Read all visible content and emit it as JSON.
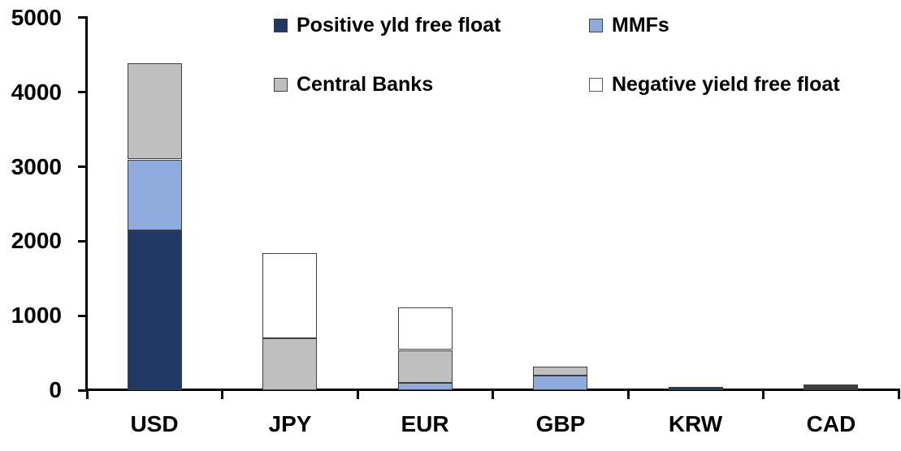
{
  "chart_data": {
    "type": "bar",
    "stacked": true,
    "title": "",
    "xlabel": "",
    "ylabel": "",
    "categories": [
      "USD",
      "JPY",
      "EUR",
      "GBP",
      "KRW",
      "CAD"
    ],
    "series": [
      {
        "name": "Positive yld free float",
        "color": "#1F3864",
        "swatch_border": "#404040",
        "values": [
          2150,
          0,
          0,
          0,
          45,
          35
        ]
      },
      {
        "name": "MMFs",
        "color": "#8FAADC",
        "swatch_border": "#404040",
        "values": [
          950,
          0,
          100,
          200,
          0,
          15
        ]
      },
      {
        "name": "Central Banks",
        "color": "#BFBFBF",
        "swatch_border": "#404040",
        "values": [
          1290,
          700,
          440,
          120,
          0,
          25
        ]
      },
      {
        "name": "Negative yield free float",
        "color": "#FFFFFF",
        "swatch_border": "#595959",
        "values": [
          0,
          1140,
          570,
          0,
          0,
          0
        ]
      }
    ],
    "totals_approx": [
      4390,
      1840,
      1110,
      320,
      45,
      75
    ],
    "ylim": [
      0,
      5000
    ],
    "yticks": [
      0,
      1000,
      2000,
      3000,
      4000,
      5000
    ],
    "ytick_labels": [
      "0",
      "1000",
      "2000",
      "3000",
      "4000",
      "5000"
    ],
    "legend_position": "top",
    "legend_layout": "two-rows-two-columns",
    "grid": false,
    "axis_color": "#000000",
    "segment_border_color": "#3F3F3F",
    "background_color": "#FFFFFF"
  }
}
